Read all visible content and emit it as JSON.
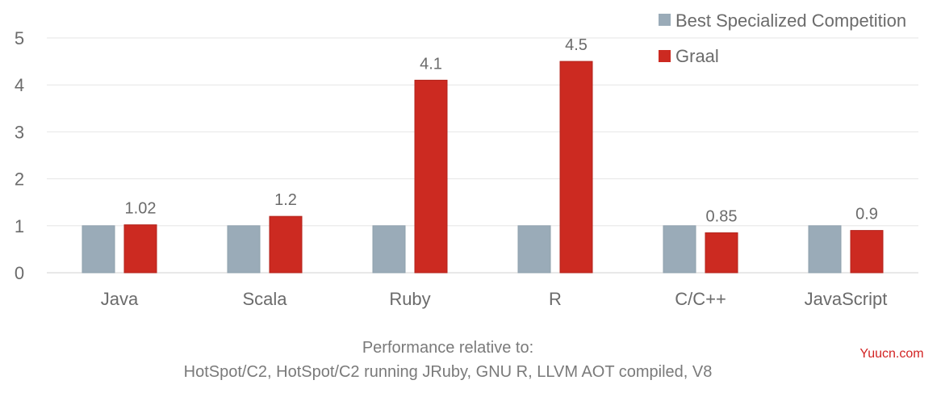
{
  "chart_data": {
    "type": "bar",
    "categories": [
      "Java",
      "Scala",
      "Ruby",
      "R",
      "C/C++",
      "JavaScript"
    ],
    "series": [
      {
        "name": "Best Specialized Competition",
        "values": [
          1,
          1,
          1,
          1,
          1,
          1
        ],
        "color": "#9aabb8"
      },
      {
        "name": "Graal",
        "values": [
          1.02,
          1.2,
          4.1,
          4.5,
          0.85,
          0.9
        ],
        "color": "#cc2a21"
      }
    ],
    "data_labels": [
      "1.02",
      "1.2",
      "4.1",
      "4.5",
      "0.85",
      "0.9"
    ],
    "yticks": [
      "0",
      "1",
      "2",
      "3",
      "4",
      "5"
    ],
    "ylim": [
      0,
      5
    ],
    "grid": true,
    "legend_position": "top-right",
    "caption": [
      "Performance relative to:",
      "HotSpot/C2, HotSpot/C2 running JRuby, GNU R, LLVM AOT compiled, V8"
    ]
  },
  "watermark": "Yuucn.com"
}
